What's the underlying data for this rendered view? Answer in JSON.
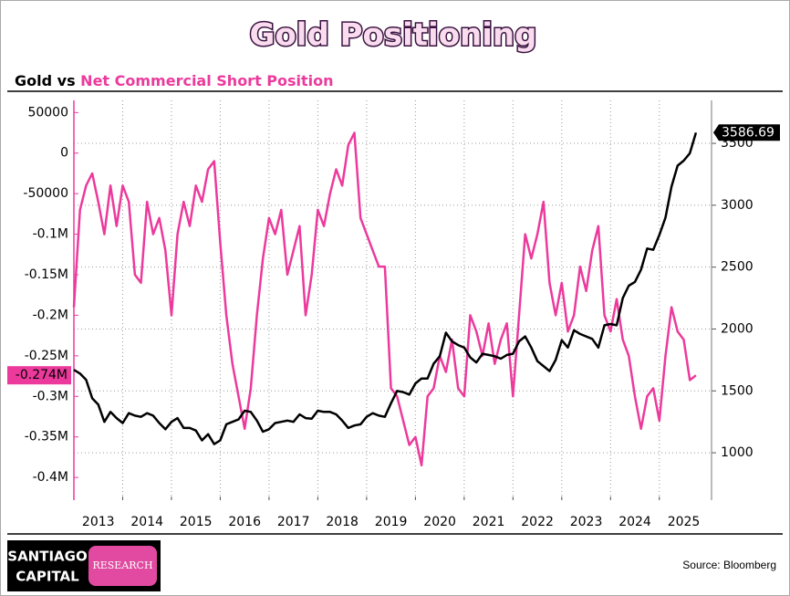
{
  "chart_data": {
    "type": "line",
    "title": "Gold Positioning",
    "subtitle_joiner": "vs",
    "x": [
      2013,
      2013.125,
      2013.25,
      2013.375,
      2013.5,
      2013.625,
      2013.75,
      2013.875,
      2014,
      2014.125,
      2014.25,
      2014.375,
      2014.5,
      2014.625,
      2014.75,
      2014.875,
      2015,
      2015.125,
      2015.25,
      2015.375,
      2015.5,
      2015.625,
      2015.75,
      2015.875,
      2016,
      2016.125,
      2016.25,
      2016.375,
      2016.5,
      2016.625,
      2016.75,
      2016.875,
      2017,
      2017.125,
      2017.25,
      2017.375,
      2017.5,
      2017.625,
      2017.75,
      2017.875,
      2018,
      2018.125,
      2018.25,
      2018.375,
      2018.5,
      2018.625,
      2018.75,
      2018.875,
      2019,
      2019.125,
      2019.25,
      2019.375,
      2019.5,
      2019.625,
      2019.75,
      2019.875,
      2020,
      2020.125,
      2020.25,
      2020.375,
      2020.5,
      2020.625,
      2020.75,
      2020.875,
      2021,
      2021.125,
      2021.25,
      2021.375,
      2021.5,
      2021.625,
      2021.75,
      2021.875,
      2022,
      2022.125,
      2022.25,
      2022.375,
      2022.5,
      2022.625,
      2022.75,
      2022.875,
      2023,
      2023.125,
      2023.25,
      2023.375,
      2023.5,
      2023.625,
      2023.75,
      2023.875,
      2024,
      2024.125,
      2024.25,
      2024.375,
      2024.5,
      2024.625,
      2024.75,
      2024.875,
      2025,
      2025.125,
      2025.25,
      2025.375,
      2025.5,
      2025.625,
      2025.75
    ],
    "series": [
      {
        "name": "Net Commercial Short Position",
        "color": "#ec3a9c",
        "axis": "y",
        "values": [
          -190000,
          -70000,
          -40000,
          -25000,
          -60000,
          -100000,
          -40000,
          -90000,
          -40000,
          -60000,
          -150000,
          -160000,
          -60000,
          -100000,
          -80000,
          -120000,
          -200000,
          -100000,
          -60000,
          -90000,
          -40000,
          -60000,
          -20000,
          -10000,
          -110000,
          -200000,
          -260000,
          -300000,
          -340000,
          -290000,
          -200000,
          -130000,
          -80000,
          -100000,
          -70000,
          -150000,
          -120000,
          -90000,
          -200000,
          -150000,
          -70000,
          -90000,
          -50000,
          -20000,
          -40000,
          10000,
          25000,
          -80000,
          -100000,
          -120000,
          -140000,
          -140000,
          -290000,
          -300000,
          -330000,
          -360000,
          -350000,
          -385000,
          -300000,
          -290000,
          -250000,
          -270000,
          -230000,
          -290000,
          -300000,
          -200000,
          -220000,
          -250000,
          -210000,
          -260000,
          -230000,
          -210000,
          -300000,
          -200000,
          -100000,
          -130000,
          -100000,
          -60000,
          -160000,
          -200000,
          -160000,
          -220000,
          -200000,
          -140000,
          -170000,
          -120000,
          -90000,
          -200000,
          -220000,
          -180000,
          -230000,
          -250000,
          -300000,
          -340000,
          -300000,
          -290000,
          -330000,
          -250000,
          -190000,
          -220000,
          -230000,
          -280000,
          -274000
        ],
        "current": {
          "value": -274000,
          "label": "-0.274M"
        }
      },
      {
        "name": "Gold",
        "color": "#000000",
        "axis": "y2",
        "values": [
          1670,
          1640,
          1590,
          1440,
          1390,
          1250,
          1330,
          1280,
          1240,
          1320,
          1300,
          1290,
          1320,
          1300,
          1240,
          1190,
          1250,
          1280,
          1200,
          1200,
          1180,
          1100,
          1150,
          1070,
          1100,
          1230,
          1250,
          1270,
          1340,
          1330,
          1260,
          1170,
          1190,
          1240,
          1250,
          1260,
          1250,
          1310,
          1280,
          1275,
          1340,
          1330,
          1330,
          1310,
          1260,
          1200,
          1220,
          1230,
          1290,
          1320,
          1300,
          1290,
          1400,
          1500,
          1490,
          1470,
          1560,
          1600,
          1600,
          1720,
          1780,
          1970,
          1900,
          1870,
          1850,
          1770,
          1730,
          1800,
          1790,
          1780,
          1760,
          1790,
          1800,
          1900,
          1940,
          1850,
          1740,
          1700,
          1660,
          1750,
          1910,
          1850,
          1990,
          1960,
          1940,
          1920,
          1850,
          2030,
          2040,
          2030,
          2250,
          2350,
          2380,
          2480,
          2650,
          2640,
          2760,
          2900,
          3150,
          3320,
          3360,
          3420,
          3586.69
        ],
        "current": 3586.69
      }
    ],
    "xlim": [
      2013,
      2026.07
    ],
    "xticks": [
      2013,
      2014,
      2015,
      2016,
      2017,
      2018,
      2019,
      2020,
      2021,
      2022,
      2023,
      2024,
      2025
    ],
    "ylim": [
      -428000,
      65000
    ],
    "yticks": [
      50000,
      0,
      -50000,
      {
        "value": -100000,
        "label": "-0.1M"
      },
      {
        "value": -150000,
        "label": "-0.15M"
      },
      {
        "value": -200000,
        "label": "-0.2M"
      },
      {
        "value": -250000,
        "label": "-0.25M"
      },
      {
        "value": -300000,
        "label": "-0.3M"
      },
      {
        "value": -350000,
        "label": "-0.35M"
      },
      {
        "value": -400000,
        "label": "-0.4M"
      }
    ],
    "y2lim": [
      617,
      3847
    ],
    "y2ticks": [
      1000,
      1500,
      2000,
      2500,
      3000,
      3500
    ],
    "grid": true
  },
  "footer": {
    "logo_top": "SANTIAGO",
    "logo_bottom": "CAPITAL",
    "badge": "RESEARCH",
    "source": "Source: Bloomberg"
  }
}
